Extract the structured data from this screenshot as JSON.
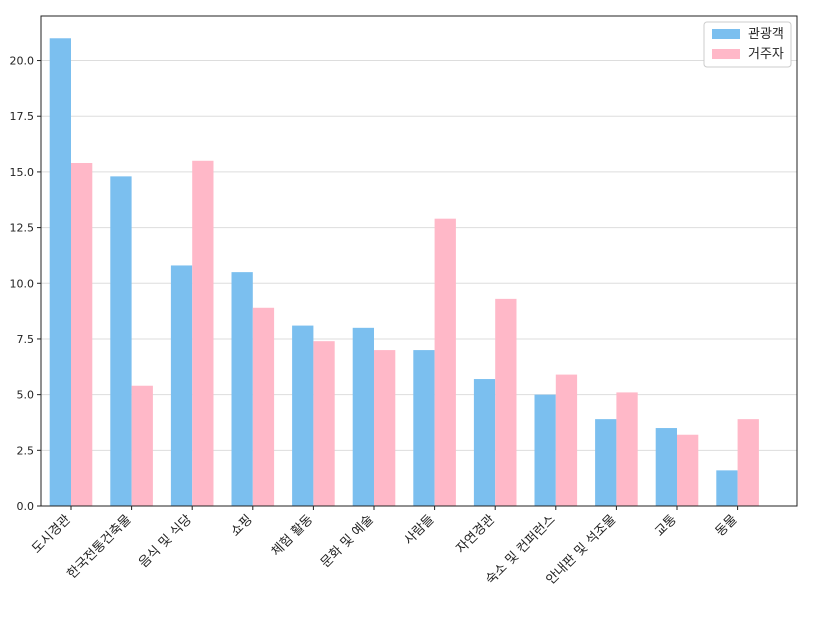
{
  "chart_data": {
    "type": "bar",
    "categories": [
      "도시경관",
      "한국전통건축물",
      "음식 및 식당",
      "쇼핑",
      "체험 활동",
      "문화 및 예술",
      "사람들",
      "자연경관",
      "숙소 및 컨퍼런스",
      "안내판 및 석조물",
      "교통",
      "동물"
    ],
    "series": [
      {
        "name": "관광객",
        "color": "#7bbfef",
        "values": [
          21.0,
          14.8,
          10.8,
          10.5,
          8.1,
          8.0,
          7.0,
          5.7,
          5.0,
          3.9,
          3.5,
          1.6
        ]
      },
      {
        "name": "거주자",
        "color": "#ffb8c8",
        "values": [
          15.4,
          5.4,
          15.5,
          8.9,
          7.4,
          7.0,
          12.9,
          9.3,
          5.9,
          5.1,
          3.2,
          3.9
        ]
      }
    ],
    "yticks": [
      "0.0",
      "2.5",
      "5.0",
      "7.5",
      "10.0",
      "12.5",
      "15.0",
      "17.5",
      "20.0"
    ],
    "ylim": [
      0,
      22
    ],
    "grid": "horizontal",
    "legend_position": "top-right",
    "title": "",
    "xlabel": "",
    "ylabel": ""
  }
}
